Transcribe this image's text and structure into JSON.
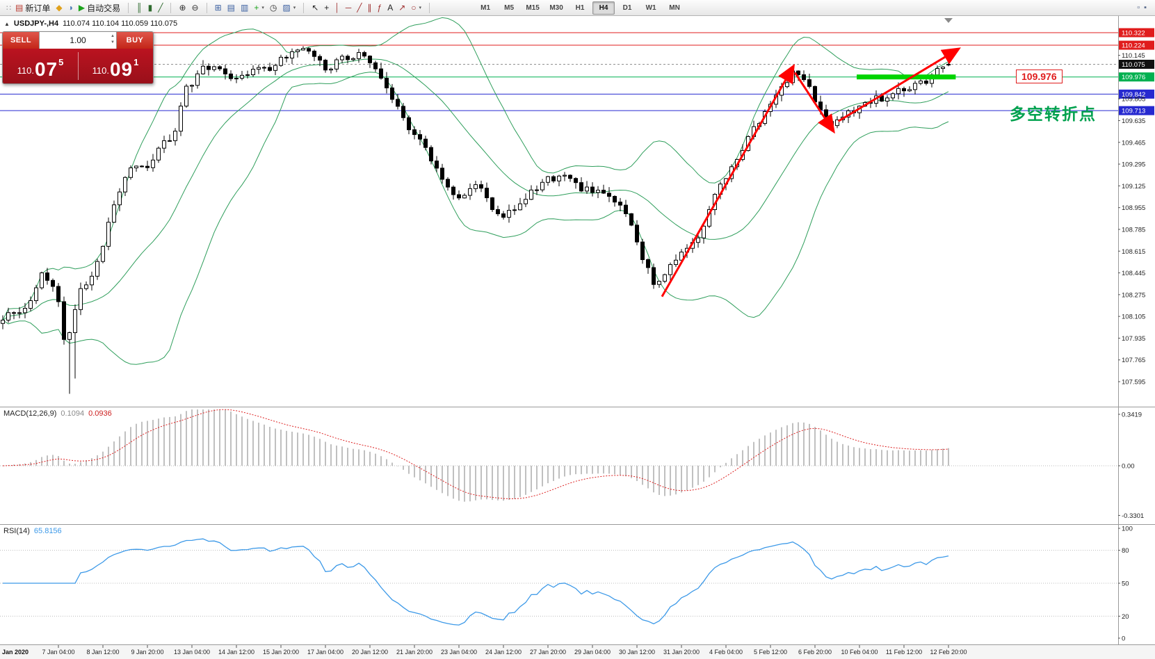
{
  "chart_header": {
    "toggle_icon": "▲",
    "symbol": "USDJPY-,H4",
    "ohlc": "110.074 110.104 110.059 110.075"
  },
  "toolbar": {
    "left_groups": [
      {
        "items": [
          {
            "name": "toolbar-handle",
            "glyph": "∷",
            "type": "handle"
          },
          {
            "name": "new-order",
            "glyph": "▤",
            "glyph_color": "#b93a2f",
            "label": "新订单"
          },
          {
            "name": "metaeditor",
            "glyph": "◆",
            "glyph_color": "#e0a11c"
          },
          {
            "name": "profiles",
            "glyph": "◑",
            "glyph_color": "#4a7ab5"
          },
          {
            "name": "autotrading",
            "glyph": "▶",
            "glyph_color": "#1ca31c",
            "label": "自动交易"
          }
        ]
      },
      {
        "items": [
          {
            "name": "bar-chart-mode",
            "glyph": "║",
            "glyph_color": "#2f6b2f"
          },
          {
            "name": "candlestick-mode",
            "glyph": "▮",
            "glyph_color": "#2f6b2f"
          },
          {
            "name": "line-chart-mode",
            "glyph": "╱",
            "glyph_color": "#2f6b2f"
          }
        ]
      },
      {
        "items": [
          {
            "name": "zoom-in",
            "glyph": "⊕",
            "glyph_color": "#333333"
          },
          {
            "name": "zoom-out",
            "glyph": "⊖",
            "glyph_color": "#333333"
          }
        ]
      },
      {
        "items": [
          {
            "name": "tile-windows",
            "glyph": "⊞",
            "glyph_color": "#3a5fa0"
          },
          {
            "name": "arrange-horizontal",
            "glyph": "▤",
            "glyph_color": "#3a5fa0"
          },
          {
            "name": "arrange-vertical",
            "glyph": "▥",
            "glyph_color": "#3a5fa0"
          },
          {
            "name": "new-chart",
            "glyph": "+",
            "glyph_color": "#1ca31c",
            "caret": true
          },
          {
            "name": "period",
            "glyph": "◷",
            "glyph_color": "#333333"
          },
          {
            "name": "chart-template",
            "glyph": "▨",
            "glyph_color": "#3a5fa0",
            "caret": true
          }
        ]
      },
      {
        "items": [
          {
            "name": "cursor",
            "glyph": "↖",
            "glyph_color": "#222222"
          },
          {
            "name": "crosshair",
            "glyph": "+",
            "glyph_color": "#222222"
          },
          {
            "name": "vertical-line",
            "glyph": "│",
            "glyph_color": "#a03030"
          },
          {
            "name": "horizontal-line",
            "glyph": "─",
            "glyph_color": "#a03030"
          },
          {
            "name": "trendline",
            "glyph": "╱",
            "glyph_color": "#a03030"
          },
          {
            "name": "equidistant-channel",
            "glyph": "∥",
            "glyph_color": "#a03030"
          },
          {
            "name": "fibonacci",
            "glyph": "ƒ",
            "glyph_color": "#a03030"
          },
          {
            "name": "text-label",
            "glyph": "A",
            "glyph_color": "#222222"
          },
          {
            "name": "arrow-object",
            "glyph": "↗",
            "glyph_color": "#a03030"
          },
          {
            "name": "shapes",
            "glyph": "○",
            "glyph_color": "#a03030",
            "caret": true
          }
        ]
      }
    ],
    "timeframes": [
      {
        "label": "M1"
      },
      {
        "label": "M5"
      },
      {
        "label": "M15"
      },
      {
        "label": "M30"
      },
      {
        "label": "H1"
      },
      {
        "label": "H4",
        "active": true
      },
      {
        "label": "D1"
      },
      {
        "label": "W1"
      },
      {
        "label": "MN"
      }
    ],
    "right_items": [
      {
        "name": "data-window",
        "glyph": "▫"
      },
      {
        "name": "full-screen",
        "glyph": "▪"
      }
    ]
  },
  "trade_panel": {
    "sell_button": "SELL",
    "buy_button": "BUY",
    "volume": "1.00",
    "sell_price": {
      "prefix": "110.",
      "big": "07",
      "sup": "5"
    },
    "buy_price": {
      "prefix": "110.",
      "big": "09",
      "sup": "1"
    }
  },
  "indicator_labels": {
    "macd_name": "MACD(12,26,9)",
    "macd_value": "0.1094",
    "macd_signal": "0.0936",
    "rsi_name": "RSI(14)",
    "rsi_value": "65.8156"
  },
  "price_axis": [
    {
      "text": "110.322",
      "price": 110.322,
      "box": "#e01c1c"
    },
    {
      "text": "110.224",
      "price": 110.224,
      "box": "#e01c1c"
    },
    {
      "text": "110.145",
      "price": 110.145
    },
    {
      "text": "110.075",
      "price": 110.075,
      "box": "#101010"
    },
    {
      "text": "109.976",
      "price": 109.976,
      "box": "#00b050"
    },
    {
      "text": "109.842",
      "price": 109.842,
      "box": "#2629d0"
    },
    {
      "text": "109.805",
      "price": 109.805
    },
    {
      "text": "109.713",
      "price": 109.713,
      "box": "#2629d0"
    },
    {
      "text": "109.635",
      "price": 109.635
    },
    {
      "text": "109.465",
      "price": 109.465
    },
    {
      "text": "109.295",
      "price": 109.295
    },
    {
      "text": "109.125",
      "price": 109.125
    },
    {
      "text": "108.955",
      "price": 108.955
    },
    {
      "text": "108.785",
      "price": 108.785
    },
    {
      "text": "108.615",
      "price": 108.615
    },
    {
      "text": "108.445",
      "price": 108.445
    },
    {
      "text": "108.275",
      "price": 108.275
    },
    {
      "text": "108.105",
      "price": 108.105
    },
    {
      "text": "107.935",
      "price": 107.935
    },
    {
      "text": "107.765",
      "price": 107.765
    },
    {
      "text": "107.595",
      "price": 107.595
    }
  ],
  "macd_axis": [
    {
      "text": "0.3419",
      "value": 0.3419
    },
    {
      "text": "0.00",
      "value": 0
    },
    {
      "text": "-0.3301",
      "value": -0.3301
    }
  ],
  "rsi_axis": [
    {
      "text": "100",
      "value": 100
    },
    {
      "text": "80",
      "value": 80,
      "level": true
    },
    {
      "text": "50",
      "value": 50,
      "level": true
    },
    {
      "text": "20",
      "value": 20,
      "level": true
    },
    {
      "text": "0",
      "value": 0
    }
  ],
  "time_axis": {
    "month_label": "Jan 2020",
    "labels": [
      {
        "text": "7 Jan 04:00",
        "bar": 10
      },
      {
        "text": "8 Jan 12:00",
        "bar": 18
      },
      {
        "text": "9 Jan 20:00",
        "bar": 26
      },
      {
        "text": "13 Jan 04:00",
        "bar": 34
      },
      {
        "text": "14 Jan 12:00",
        "bar": 42
      },
      {
        "text": "15 Jan 20:00",
        "bar": 50
      },
      {
        "text": "17 Jan 04:00",
        "bar": 58
      },
      {
        "text": "20 Jan 12:00",
        "bar": 66
      },
      {
        "text": "21 Jan 20:00",
        "bar": 74
      },
      {
        "text": "23 Jan 04:00",
        "bar": 82
      },
      {
        "text": "24 Jan 12:00",
        "bar": 90
      },
      {
        "text": "27 Jan 20:00",
        "bar": 98
      },
      {
        "text": "29 Jan 04:00",
        "bar": 106
      },
      {
        "text": "30 Jan 12:00",
        "bar": 114
      },
      {
        "text": "31 Jan 20:00",
        "bar": 122
      },
      {
        "text": "4 Feb 04:00",
        "bar": 130
      },
      {
        "text": "5 Feb 12:00",
        "bar": 138
      },
      {
        "text": "6 Feb 20:00",
        "bar": 146
      },
      {
        "text": "10 Feb 04:00",
        "bar": 154
      },
      {
        "text": "11 Feb 12:00",
        "bar": 162
      },
      {
        "text": "12 Feb 20:00",
        "bar": 170
      }
    ]
  },
  "chart_data": {
    "type": "candlestick",
    "symbol": "USDJPY-",
    "timeframe": "H4",
    "title": "USDJPY-,H4",
    "last_ohlc": {
      "open": 110.074,
      "high": 110.104,
      "low": 110.059,
      "close": 110.075
    },
    "bar_count": 171,
    "y_axis_visible_range": [
      107.4,
      110.46
    ],
    "price_path": [
      [
        0,
        108.05
      ],
      [
        2,
        108.18
      ],
      [
        4,
        108.1
      ],
      [
        6,
        108.28
      ],
      [
        8,
        108.45
      ],
      [
        10,
        108.3
      ],
      [
        11,
        108.15
      ],
      [
        12,
        107.8
      ],
      [
        13,
        108.05
      ],
      [
        14,
        108.28
      ],
      [
        16,
        108.4
      ],
      [
        18,
        108.55
      ],
      [
        20,
        108.9
      ],
      [
        22,
        109.15
      ],
      [
        24,
        109.32
      ],
      [
        26,
        109.25
      ],
      [
        28,
        109.38
      ],
      [
        30,
        109.48
      ],
      [
        32,
        109.55
      ],
      [
        33,
        109.85
      ],
      [
        35,
        109.95
      ],
      [
        37,
        110.05
      ],
      [
        39,
        110.08
      ],
      [
        41,
        110.0
      ],
      [
        43,
        109.95
      ],
      [
        45,
        110.02
      ],
      [
        47,
        110.08
      ],
      [
        49,
        110.05
      ],
      [
        51,
        110.12
      ],
      [
        53,
        110.2
      ],
      [
        55,
        110.22
      ],
      [
        57,
        110.1
      ],
      [
        59,
        110.04
      ],
      [
        61,
        110.1
      ],
      [
        63,
        110.14
      ],
      [
        65,
        110.16
      ],
      [
        67,
        110.08
      ],
      [
        69,
        109.95
      ],
      [
        71,
        109.78
      ],
      [
        73,
        109.6
      ],
      [
        75,
        109.5
      ],
      [
        77,
        109.38
      ],
      [
        79,
        109.22
      ],
      [
        81,
        109.1
      ],
      [
        83,
        109.03
      ],
      [
        85,
        109.12
      ],
      [
        87,
        109.08
      ],
      [
        89,
        108.92
      ],
      [
        91,
        108.9
      ],
      [
        93,
        108.98
      ],
      [
        95,
        109.05
      ],
      [
        97,
        109.12
      ],
      [
        99,
        109.18
      ],
      [
        101,
        109.22
      ],
      [
        103,
        109.16
      ],
      [
        105,
        109.1
      ],
      [
        107,
        109.06
      ],
      [
        109,
        109.1
      ],
      [
        111,
        109.0
      ],
      [
        113,
        108.88
      ],
      [
        115,
        108.62
      ],
      [
        117,
        108.42
      ],
      [
        118,
        108.34
      ],
      [
        119,
        108.42
      ],
      [
        121,
        108.52
      ],
      [
        123,
        108.62
      ],
      [
        125,
        108.7
      ],
      [
        127,
        108.85
      ],
      [
        129,
        109.08
      ],
      [
        131,
        109.22
      ],
      [
        133,
        109.36
      ],
      [
        135,
        109.52
      ],
      [
        137,
        109.65
      ],
      [
        139,
        109.8
      ],
      [
        141,
        109.93
      ],
      [
        143,
        110.01
      ],
      [
        145,
        109.92
      ],
      [
        147,
        109.76
      ],
      [
        149,
        109.6
      ],
      [
        151,
        109.64
      ],
      [
        153,
        109.7
      ],
      [
        155,
        109.75
      ],
      [
        157,
        109.79
      ],
      [
        159,
        109.82
      ],
      [
        161,
        109.85
      ],
      [
        163,
        109.87
      ],
      [
        165,
        109.91
      ],
      [
        167,
        109.96
      ],
      [
        169,
        110.04
      ],
      [
        170,
        110.07
      ]
    ],
    "spikes": [
      {
        "bar": 12,
        "low": 107.5
      },
      {
        "bar": 13,
        "low": 107.62
      }
    ],
    "overlays": {
      "bollinger_bands": {
        "period": 20,
        "deviation": 2,
        "color": "#2e9e5b"
      }
    },
    "sub_indicators": {
      "macd": {
        "params": "12,26,9",
        "value": 0.1094,
        "signal": 0.0936,
        "histogram_color": "#b0b0b0",
        "signal_color": "#dd2020",
        "axis_max": 0.3419,
        "axis_min": -0.3301
      },
      "rsi": {
        "period": 14,
        "value": 65.8156,
        "color": "#3c99e8",
        "levels": [
          80,
          50,
          20
        ]
      }
    }
  },
  "annotations": {
    "horizontal_lines": [
      {
        "price": 110.322,
        "color": "#e01c1c"
      },
      {
        "price": 110.224,
        "color": "#e01c1c"
      },
      {
        "price": 109.976,
        "color": "#00b050"
      },
      {
        "price": 109.842,
        "color": "#2629d0"
      },
      {
        "price": 109.713,
        "color": "#2629d0"
      }
    ],
    "current_price_line": {
      "price": 110.075,
      "color": "#909090"
    },
    "trend_arrows": [
      {
        "from_bar": 118.5,
        "from_price": 108.26,
        "to_bar": 142.0,
        "to_price": 110.05,
        "color": "#ff0000"
      },
      {
        "from_bar": 142.4,
        "from_price": 110.01,
        "to_bar": 149.2,
        "to_price": 109.56,
        "color": "#ff0000"
      },
      {
        "from_bar": 150.2,
        "from_price": 109.63,
        "to_bar": 171.6,
        "to_price": 110.19,
        "color": "#ff0000"
      }
    ],
    "highlight_band": {
      "from_bar": 153.5,
      "to_bar": 171.3,
      "price": 109.976,
      "color": "#00d400",
      "thickness": 7
    },
    "price_callout": {
      "text": "109.976",
      "color": "#ff0000"
    },
    "note_text": {
      "text": "多空转折点",
      "color": "#00a14e"
    }
  }
}
